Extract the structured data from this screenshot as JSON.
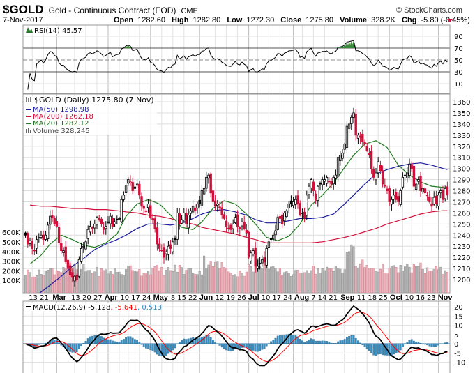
{
  "header": {
    "symbol": "$GOLD",
    "name": "Gold - Continuous Contract (EOD)",
    "exchange": "CME",
    "copyright": "© StockCharts.com",
    "date": "7-Nov-2017",
    "open_label": "Open",
    "open": "1282.60",
    "high_label": "High",
    "high": "1282.80",
    "low_label": "Low",
    "low": "1272.30",
    "close_label": "Close",
    "close": "1275.80",
    "volume_label": "Volume",
    "volume": "328.2K",
    "chg_label": "Chg",
    "chg": "-5.80 (-0.45%)",
    "chg_direction": "down"
  },
  "rsi_panel": {
    "label": "RSI(14) 45.57",
    "ticks": [
      "90",
      "70",
      "50",
      "30",
      "10"
    ]
  },
  "price_legend": {
    "title": "$GOLD (Daily) 1275.80 (7 Nov)",
    "ma50": "MA(50) 1298.98",
    "ma200": "MA(200) 1262.18",
    "ma20": "MA(20) 1282.12",
    "volume": "Volume 328,245"
  },
  "macd_panel": {
    "label": "MACD(12,26,9) -5.128",
    "signal": ", -5.641",
    "histogram": ", 0.513",
    "ticks": [
      "20",
      "15",
      "10",
      "5",
      "0",
      "-5",
      "-10"
    ]
  },
  "colors": {
    "up": "#000000",
    "down": "#d0103a",
    "ma50": "#1a1a9a",
    "ma200": "#d0103a",
    "ma20": "#1e7a1e",
    "volume_up": "#b8b8b8",
    "volume_down": "#e8b4bc",
    "macd_hist": "#3a8ec0",
    "signal": "#ff0000"
  },
  "chart_data": {
    "type": "candlestick",
    "title": "$GOLD (Daily)",
    "price_ticks": [
      1200,
      1210,
      1220,
      1230,
      1240,
      1250,
      1260,
      1270,
      1280,
      1290,
      1300,
      1310,
      1320,
      1330,
      1340,
      1350,
      1360
    ],
    "volume_ticks": [
      "100K",
      "200K",
      "300K",
      "400K",
      "500K",
      "600K"
    ],
    "x_tick_labels": [
      "13",
      "21",
      "Mar",
      "13",
      "20",
      "27",
      "Apr",
      "10",
      "17",
      "24",
      "May",
      "8",
      "15",
      "22",
      "Jun",
      "12",
      "19",
      "26",
      "Jul",
      "10",
      "17",
      "24",
      "Aug",
      "7",
      "14",
      "21",
      "Sep",
      "11",
      "18",
      "25",
      "Oct",
      "10",
      "16",
      "23",
      "Nov"
    ],
    "grid": true,
    "weeks": [
      {
        "week": "Feb 6",
        "closes": [
          1240,
          1232,
          1235
        ],
        "volume_k": 180,
        "ma20": 1214,
        "ma50": 1180,
        "ma200": 1267
      },
      {
        "week": "Feb 13",
        "closes": [
          1228,
          1226,
          1236,
          1238,
          1240
        ],
        "volume_k": 170,
        "ma20": 1222,
        "ma50": 1189,
        "ma200": 1266
      },
      {
        "week": "Feb 20",
        "closes": [
          1236,
          1240,
          1249,
          1257
        ],
        "volume_k": 200,
        "ma20": 1232,
        "ma50": 1195,
        "ma200": 1266
      },
      {
        "week": "Feb 27",
        "closes": [
          1256,
          1250,
          1248,
          1233,
          1226
        ],
        "volume_k": 210,
        "ma20": 1240,
        "ma50": 1203,
        "ma200": 1265
      },
      {
        "week": "Mar 6",
        "closes": [
          1226,
          1216,
          1210,
          1204,
          1202
        ],
        "volume_k": 240,
        "ma20": 1236,
        "ma50": 1212,
        "ma200": 1264
      },
      {
        "week": "Mar 13",
        "closes": [
          1203,
          1200,
          1218,
          1228,
          1230
        ],
        "volume_k": 220,
        "ma20": 1231,
        "ma50": 1219,
        "ma200": 1264
      },
      {
        "week": "Mar 20",
        "closes": [
          1234,
          1245,
          1248,
          1246,
          1250
        ],
        "volume_k": 200,
        "ma20": 1229,
        "ma50": 1227,
        "ma200": 1263
      },
      {
        "week": "Mar 27",
        "closes": [
          1256,
          1254,
          1250,
          1245,
          1248
        ],
        "volume_k": 190,
        "ma20": 1233,
        "ma50": 1232,
        "ma200": 1263
      },
      {
        "week": "Apr 3",
        "closes": [
          1252,
          1257,
          1248,
          1252,
          1254
        ],
        "volume_k": 190,
        "ma20": 1241,
        "ma50": 1236,
        "ma200": 1262
      },
      {
        "week": "Apr 10",
        "closes": [
          1255,
          1272,
          1276,
          1285
        ],
        "volume_k": 180,
        "ma20": 1257,
        "ma50": 1240,
        "ma200": 1261
      },
      {
        "week": "Apr 17",
        "closes": [
          1290,
          1288,
          1280,
          1282,
          1286
        ],
        "volume_k": 230,
        "ma20": 1268,
        "ma50": 1246,
        "ma200": 1260
      },
      {
        "week": "Apr 24",
        "closes": [
          1276,
          1266,
          1264,
          1262,
          1268
        ],
        "volume_k": 190,
        "ma20": 1272,
        "ma50": 1250,
        "ma200": 1258
      },
      {
        "week": "May 1",
        "closes": [
          1256,
          1254,
          1246,
          1232,
          1228
        ],
        "volume_k": 210,
        "ma20": 1268,
        "ma50": 1250,
        "ma200": 1257
      },
      {
        "week": "May 8",
        "closes": [
          1226,
          1220,
          1225,
          1230,
          1228
        ],
        "volume_k": 200,
        "ma20": 1258,
        "ma50": 1249,
        "ma200": 1255
      },
      {
        "week": "May 15",
        "closes": [
          1234,
          1236,
          1260,
          1250,
          1254
        ],
        "volume_k": 220,
        "ma20": 1247,
        "ma50": 1251,
        "ma200": 1252
      },
      {
        "week": "May 22",
        "closes": [
          1260,
          1250,
          1258,
          1262,
          1266
        ],
        "volume_k": 200,
        "ma20": 1245,
        "ma50": 1255,
        "ma200": 1250
      },
      {
        "week": "May 29",
        "closes": [
          1262,
          1268,
          1268,
          1280
        ],
        "volume_k": 190,
        "ma20": 1252,
        "ma50": 1259,
        "ma200": 1247
      },
      {
        "week": "Jun 5",
        "closes": [
          1282,
          1292,
          1294,
          1278,
          1270
        ],
        "volume_k": 300,
        "ma20": 1264,
        "ma50": 1262,
        "ma200": 1245
      },
      {
        "week": "Jun 12",
        "closes": [
          1266,
          1268,
          1265,
          1258,
          1255
        ],
        "volume_k": 250,
        "ma20": 1271,
        "ma50": 1263,
        "ma200": 1243
      },
      {
        "week": "Jun 19",
        "closes": [
          1248,
          1246,
          1245,
          1250,
          1256
        ],
        "volume_k": 190,
        "ma20": 1268,
        "ma50": 1261,
        "ma200": 1241
      },
      {
        "week": "Jun 26",
        "closes": [
          1248,
          1246,
          1252,
          1246,
          1242
        ],
        "volume_k": 180,
        "ma20": 1259,
        "ma50": 1258,
        "ma200": 1238
      },
      {
        "week": "Jul 3",
        "closes": [
          1220,
          1224,
          1226,
          1212
        ],
        "volume_k": 230,
        "ma20": 1250,
        "ma50": 1254,
        "ma200": 1236
      },
      {
        "week": "Jul 10",
        "closes": [
          1212,
          1214,
          1218,
          1216,
          1228
        ],
        "volume_k": 280,
        "ma20": 1238,
        "ma50": 1251,
        "ma200": 1233
      },
      {
        "week": "Jul 17",
        "closes": [
          1234,
          1236,
          1240,
          1244,
          1256
        ],
        "volume_k": 200,
        "ma20": 1235,
        "ma50": 1251,
        "ma200": 1233
      },
      {
        "week": "Jul 24",
        "closes": [
          1255,
          1250,
          1260,
          1262,
          1268
        ],
        "volume_k": 190,
        "ma20": 1239,
        "ma50": 1253,
        "ma200": 1233
      },
      {
        "week": "Jul 31",
        "closes": [
          1268,
          1270,
          1272,
          1268,
          1258
        ],
        "volume_k": 170,
        "ma20": 1250,
        "ma50": 1255,
        "ma200": 1233
      },
      {
        "week": "Aug 7",
        "closes": [
          1260,
          1256,
          1276,
          1284,
          1290
        ],
        "volume_k": 220,
        "ma20": 1267,
        "ma50": 1255,
        "ma200": 1233
      },
      {
        "week": "Aug 14",
        "closes": [
          1280,
          1272,
          1284,
          1286,
          1290
        ],
        "volume_k": 210,
        "ma20": 1276,
        "ma50": 1256,
        "ma200": 1234
      },
      {
        "week": "Aug 21",
        "closes": [
          1290,
          1292,
          1288,
          1286,
          1292
        ],
        "volume_k": 200,
        "ma20": 1287,
        "ma50": 1259,
        "ma200": 1236
      },
      {
        "week": "Aug 28",
        "closes": [
          1294,
          1310,
          1312,
          1314,
          1322
        ],
        "volume_k": 230,
        "ma20": 1301,
        "ma50": 1268,
        "ma200": 1238
      },
      {
        "week": "Sep 4",
        "closes": [
          1338,
          1340,
          1346,
          1350
        ],
        "volume_k": 400,
        "ma20": 1312,
        "ma50": 1276,
        "ma200": 1240
      },
      {
        "week": "Sep 11",
        "closes": [
          1330,
          1330,
          1328,
          1324,
          1322
        ],
        "volume_k": 260,
        "ma20": 1322,
        "ma50": 1286,
        "ma200": 1243
      },
      {
        "week": "Sep 18",
        "closes": [
          1316,
          1312,
          1300,
          1292,
          1296
        ],
        "volume_k": 230,
        "ma20": 1325,
        "ma50": 1295,
        "ma200": 1246
      },
      {
        "week": "Sep 25",
        "closes": [
          1306,
          1298,
          1286,
          1284,
          1280
        ],
        "volume_k": 220,
        "ma20": 1319,
        "ma50": 1299,
        "ma200": 1250
      },
      {
        "week": "Oct 2",
        "closes": [
          1270,
          1272,
          1276,
          1272,
          1270
        ],
        "volume_k": 210,
        "ma20": 1303,
        "ma50": 1302,
        "ma200": 1253
      },
      {
        "week": "Oct 9",
        "closes": [
          1280,
          1292,
          1294,
          1296,
          1304
        ],
        "volume_k": 220,
        "ma20": 1294,
        "ma50": 1304,
        "ma200": 1256
      },
      {
        "week": "Oct 16",
        "closes": [
          1300,
          1284,
          1286,
          1290,
          1280
        ],
        "volume_k": 230,
        "ma20": 1288,
        "ma50": 1305,
        "ma200": 1259
      },
      {
        "week": "Oct 23",
        "closes": [
          1282,
          1278,
          1276,
          1270,
          1266
        ],
        "volume_k": 210,
        "ma20": 1284,
        "ma50": 1303,
        "ma200": 1261
      },
      {
        "week": "Oct 30",
        "closes": [
          1274,
          1268,
          1276,
          1280,
          1272
        ],
        "volume_k": 200,
        "ma20": 1283,
        "ma50": 1300,
        "ma200": 1262
      },
      {
        "week": "Nov 6",
        "closes": [
          1282,
          1276
        ],
        "volume_k": 220,
        "ma20": 1282,
        "ma50": 1299,
        "ma200": 1262
      }
    ]
  }
}
